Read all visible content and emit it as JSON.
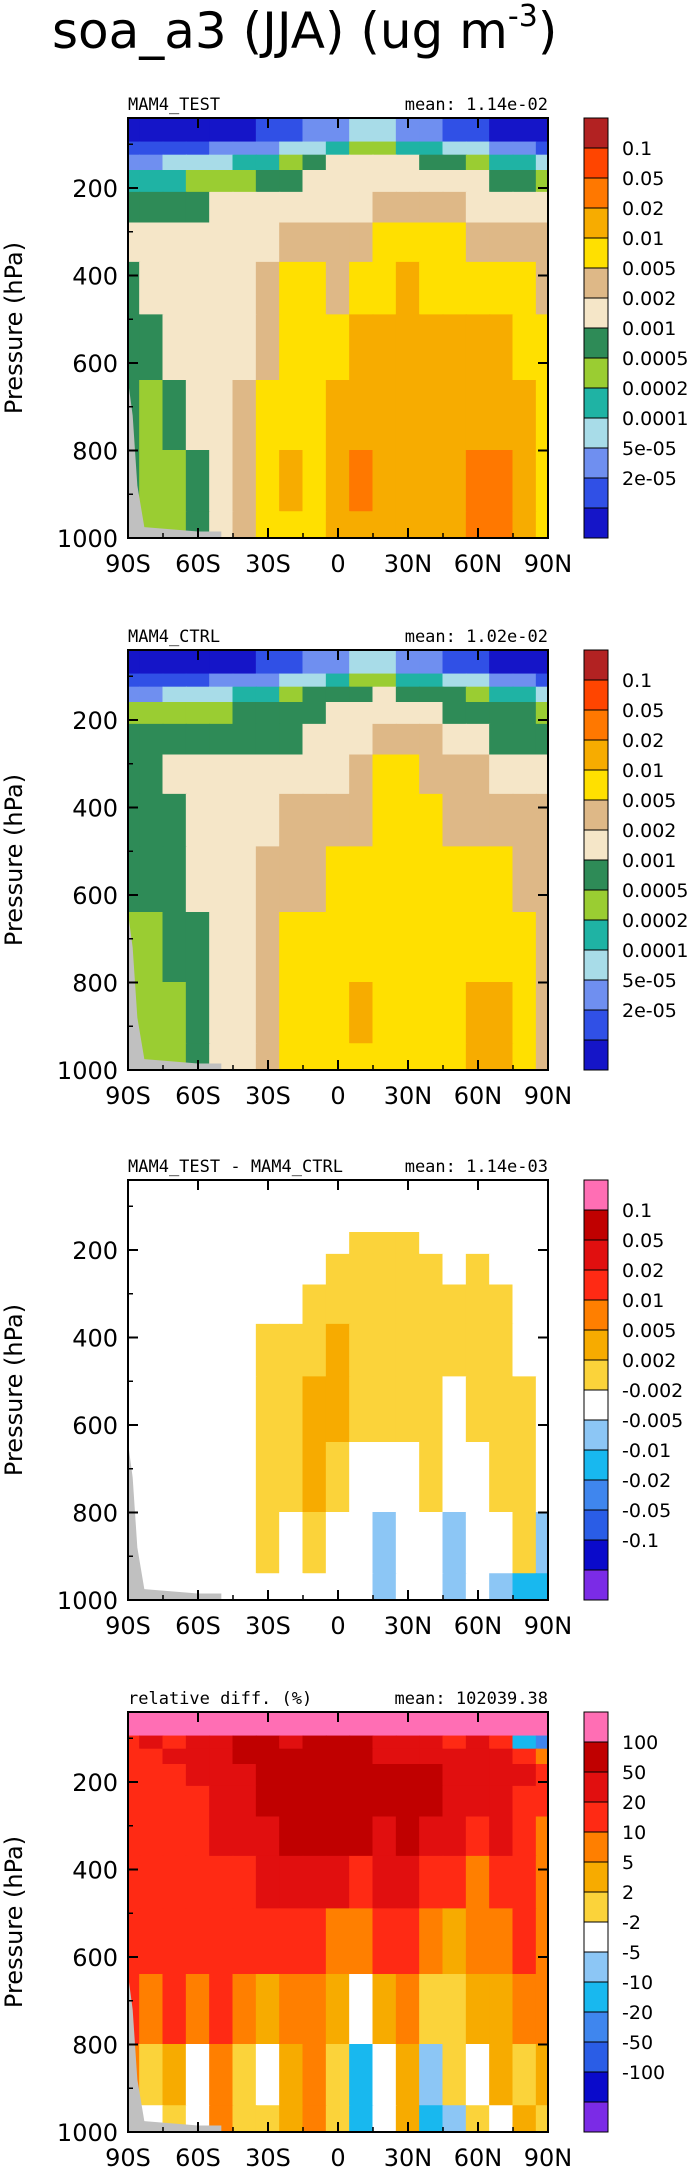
{
  "figure_title": "soa_a3 (JJA) (ug m",
  "figure_title_sup": "-3",
  "figure_title_close": ")",
  "colors": {
    "abs": [
      "#1515c8",
      "#3050e6",
      "#6f8ff0",
      "#a8dce8",
      "#1fb3a4",
      "#9acd32",
      "#2e8b57",
      "#f5e6c8",
      "#deb887",
      "#ffe000",
      "#f7ac00",
      "#ff7800",
      "#ff4500",
      "#b22222"
    ],
    "diff": [
      "#7b2be6",
      "#0a0acb",
      "#2a5de6",
      "#3f86ee",
      "#18b8ef",
      "#8cc6f5",
      "#ffffff",
      "#fbd33a",
      "#f7ab00",
      "#ff7f00",
      "#ff2a14",
      "#e10f0f",
      "#c00000",
      "#ff6eb4"
    ],
    "grey": "#c0c0c0"
  },
  "chart_data": [
    {
      "type": "contour",
      "title": "MAM4_TEST",
      "mean_text": "mean: 1.14e-02",
      "ylabel": "Pressure (hPa)",
      "xlabel": "",
      "x_ticks": [
        "90S",
        "60S",
        "30S",
        "0",
        "30N",
        "60N",
        "90N"
      ],
      "y_ticks": [
        "200",
        "400",
        "600",
        "800",
        "1000"
      ],
      "ylim": [
        1000,
        40
      ],
      "xlim": [
        -90,
        90
      ],
      "colorbar_labels": [
        "0.1",
        "0.05",
        "0.02",
        "0.01",
        "0.005",
        "0.002",
        "0.001",
        "0.0005",
        "0.0002",
        "0.0001",
        "5e-05",
        "2e-05"
      ],
      "palette": "abs",
      "levels_x": [
        -90,
        -80,
        -70,
        -60,
        -50,
        -40,
        -30,
        -20,
        -10,
        0,
        10,
        20,
        30,
        40,
        50,
        60,
        70,
        80,
        90
      ],
      "levels_p": [
        80,
        110,
        140,
        180,
        240,
        320,
        420,
        560,
        720,
        880,
        1000
      ],
      "grid": [
        [
          0,
          0,
          0,
          0,
          0,
          0,
          1,
          1,
          2,
          2,
          3,
          3,
          2,
          2,
          1,
          1,
          0,
          0,
          0
        ],
        [
          1,
          1,
          1,
          1,
          2,
          2,
          2,
          3,
          3,
          4,
          5,
          5,
          4,
          4,
          3,
          3,
          2,
          2,
          1
        ],
        [
          2,
          2,
          3,
          3,
          3,
          4,
          4,
          5,
          6,
          7,
          7,
          7,
          7,
          6,
          6,
          5,
          4,
          4,
          3
        ],
        [
          4,
          4,
          4,
          5,
          5,
          5,
          6,
          6,
          7,
          7,
          7,
          7,
          7,
          7,
          7,
          7,
          6,
          6,
          5
        ],
        [
          6,
          6,
          6,
          6,
          7,
          7,
          7,
          7,
          7,
          7,
          7,
          8,
          8,
          8,
          8,
          7,
          7,
          7,
          7
        ],
        [
          7,
          7,
          7,
          7,
          7,
          7,
          7,
          8,
          8,
          8,
          8,
          9,
          9,
          9,
          9,
          8,
          8,
          8,
          8
        ],
        [
          6,
          7,
          7,
          7,
          7,
          7,
          8,
          9,
          9,
          8,
          9,
          9,
          10,
          9,
          9,
          9,
          9,
          9,
          8
        ],
        [
          6,
          6,
          7,
          7,
          7,
          7,
          8,
          9,
          9,
          9,
          10,
          10,
          10,
          10,
          10,
          10,
          10,
          9,
          9
        ],
        [
          6,
          5,
          6,
          7,
          7,
          8,
          9,
          9,
          9,
          10,
          10,
          10,
          10,
          10,
          10,
          10,
          10,
          10,
          9
        ],
        [
          6,
          5,
          5,
          6,
          7,
          8,
          9,
          10,
          9,
          10,
          11,
          10,
          10,
          10,
          10,
          11,
          11,
          10,
          9
        ],
        [
          6,
          5,
          5,
          6,
          7,
          8,
          9,
          9,
          9,
          10,
          10,
          10,
          10,
          10,
          10,
          11,
          11,
          10,
          9
        ]
      ]
    },
    {
      "type": "contour",
      "title": "MAM4_CTRL",
      "mean_text": "mean: 1.02e-02",
      "ylabel": "Pressure (hPa)",
      "xlabel": "",
      "x_ticks": [
        "90S",
        "60S",
        "30S",
        "0",
        "30N",
        "60N",
        "90N"
      ],
      "y_ticks": [
        "200",
        "400",
        "600",
        "800",
        "1000"
      ],
      "ylim": [
        1000,
        40
      ],
      "xlim": [
        -90,
        90
      ],
      "colorbar_labels": [
        "0.1",
        "0.05",
        "0.02",
        "0.01",
        "0.005",
        "0.002",
        "0.001",
        "0.0005",
        "0.0002",
        "0.0001",
        "5e-05",
        "2e-05"
      ],
      "palette": "abs",
      "levels_x": [
        -90,
        -80,
        -70,
        -60,
        -50,
        -40,
        -30,
        -20,
        -10,
        0,
        10,
        20,
        30,
        40,
        50,
        60,
        70,
        80,
        90
      ],
      "levels_p": [
        80,
        110,
        140,
        180,
        240,
        320,
        420,
        560,
        720,
        880,
        1000
      ],
      "grid": [
        [
          0,
          0,
          0,
          0,
          0,
          0,
          1,
          1,
          2,
          2,
          3,
          3,
          2,
          2,
          1,
          1,
          0,
          0,
          0
        ],
        [
          1,
          1,
          1,
          1,
          2,
          2,
          2,
          3,
          3,
          4,
          5,
          5,
          4,
          4,
          3,
          3,
          2,
          2,
          1
        ],
        [
          2,
          2,
          3,
          3,
          3,
          4,
          4,
          5,
          6,
          6,
          6,
          7,
          6,
          6,
          6,
          5,
          4,
          4,
          3
        ],
        [
          5,
          5,
          5,
          5,
          5,
          6,
          6,
          6,
          6,
          7,
          7,
          7,
          7,
          7,
          6,
          6,
          6,
          6,
          5
        ],
        [
          6,
          6,
          6,
          6,
          6,
          6,
          6,
          6,
          7,
          7,
          7,
          8,
          8,
          8,
          7,
          7,
          6,
          6,
          6
        ],
        [
          6,
          6,
          7,
          7,
          7,
          7,
          7,
          7,
          7,
          7,
          8,
          9,
          9,
          8,
          8,
          8,
          7,
          7,
          7
        ],
        [
          6,
          6,
          6,
          7,
          7,
          7,
          7,
          8,
          8,
          8,
          8,
          9,
          9,
          9,
          8,
          8,
          8,
          8,
          8
        ],
        [
          6,
          6,
          6,
          7,
          7,
          7,
          8,
          8,
          8,
          9,
          9,
          9,
          9,
          9,
          9,
          9,
          9,
          8,
          8
        ],
        [
          5,
          5,
          6,
          6,
          7,
          7,
          8,
          9,
          9,
          9,
          9,
          9,
          9,
          9,
          9,
          9,
          9,
          9,
          8
        ],
        [
          5,
          5,
          5,
          6,
          7,
          7,
          8,
          9,
          9,
          9,
          10,
          9,
          9,
          9,
          9,
          10,
          10,
          9,
          8
        ],
        [
          5,
          5,
          5,
          6,
          7,
          7,
          8,
          9,
          9,
          9,
          9,
          9,
          9,
          9,
          9,
          10,
          10,
          9,
          8
        ]
      ]
    },
    {
      "type": "contour",
      "title": "MAM4_TEST - MAM4_CTRL",
      "mean_text": "mean: 1.14e-03",
      "ylabel": "Pressure (hPa)",
      "xlabel": "",
      "x_ticks": [
        "90S",
        "60S",
        "30S",
        "0",
        "30N",
        "60N",
        "90N"
      ],
      "y_ticks": [
        "200",
        "400",
        "600",
        "800",
        "1000"
      ],
      "ylim": [
        1000,
        40
      ],
      "xlim": [
        -90,
        90
      ],
      "colorbar_labels": [
        "0.1",
        "0.05",
        "0.02",
        "0.01",
        "0.005",
        "0.002",
        "-0.002",
        "-0.005",
        "-0.01",
        "-0.02",
        "-0.05",
        "-0.1"
      ],
      "palette": "diff",
      "levels_x": [
        -90,
        -80,
        -70,
        -60,
        -50,
        -40,
        -30,
        -20,
        -10,
        0,
        10,
        20,
        30,
        40,
        50,
        60,
        70,
        80,
        90
      ],
      "levels_p": [
        80,
        110,
        140,
        180,
        240,
        320,
        420,
        560,
        720,
        880,
        1000
      ],
      "grid": [
        [
          6,
          6,
          6,
          6,
          6,
          6,
          6,
          6,
          6,
          6,
          6,
          6,
          6,
          6,
          6,
          6,
          6,
          6,
          6
        ],
        [
          6,
          6,
          6,
          6,
          6,
          6,
          6,
          6,
          6,
          6,
          6,
          6,
          6,
          6,
          6,
          6,
          6,
          6,
          6
        ],
        [
          6,
          6,
          6,
          6,
          6,
          6,
          6,
          6,
          6,
          6,
          6,
          6,
          6,
          6,
          6,
          6,
          6,
          6,
          6
        ],
        [
          6,
          6,
          6,
          6,
          6,
          6,
          6,
          6,
          6,
          6,
          7,
          7,
          7,
          6,
          6,
          6,
          6,
          6,
          6
        ],
        [
          6,
          6,
          6,
          6,
          6,
          6,
          6,
          6,
          6,
          7,
          7,
          7,
          7,
          7,
          6,
          7,
          6,
          6,
          6
        ],
        [
          6,
          6,
          6,
          6,
          6,
          6,
          6,
          6,
          7,
          7,
          7,
          7,
          7,
          7,
          7,
          7,
          7,
          6,
          6
        ],
        [
          6,
          6,
          6,
          6,
          6,
          6,
          7,
          7,
          7,
          8,
          7,
          7,
          7,
          7,
          7,
          7,
          7,
          6,
          6
        ],
        [
          6,
          6,
          6,
          6,
          6,
          6,
          7,
          7,
          8,
          8,
          7,
          7,
          7,
          7,
          6,
          7,
          7,
          7,
          6
        ],
        [
          6,
          6,
          6,
          6,
          6,
          6,
          7,
          7,
          8,
          7,
          6,
          6,
          6,
          7,
          6,
          6,
          7,
          7,
          6
        ],
        [
          6,
          6,
          6,
          6,
          6,
          6,
          7,
          6,
          7,
          6,
          6,
          5,
          6,
          6,
          5,
          6,
          6,
          7,
          5
        ],
        [
          6,
          6,
          6,
          6,
          6,
          6,
          6,
          6,
          6,
          6,
          6,
          5,
          6,
          6,
          5,
          6,
          5,
          4,
          4
        ]
      ]
    },
    {
      "type": "contour",
      "title": "relative diff. (%)",
      "mean_text": "mean: 102039.38",
      "ylabel": "Pressure (hPa)",
      "xlabel": "",
      "x_ticks": [
        "90S",
        "60S",
        "30S",
        "0",
        "30N",
        "60N",
        "90N"
      ],
      "y_ticks": [
        "200",
        "400",
        "600",
        "800",
        "1000"
      ],
      "ylim": [
        1000,
        40
      ],
      "xlim": [
        -90,
        90
      ],
      "colorbar_labels": [
        "100",
        "50",
        "20",
        "10",
        "5",
        "2",
        "-2",
        "-5",
        "-10",
        "-20",
        "-50",
        "-100"
      ],
      "palette": "diff",
      "levels_x": [
        -90,
        -80,
        -70,
        -60,
        -50,
        -40,
        -30,
        -20,
        -10,
        0,
        10,
        20,
        30,
        40,
        50,
        60,
        70,
        80,
        90
      ],
      "levels_p": [
        80,
        110,
        140,
        180,
        240,
        320,
        420,
        560,
        720,
        880,
        1000
      ],
      "grid": [
        [
          13,
          13,
          13,
          13,
          13,
          13,
          13,
          13,
          13,
          13,
          13,
          13,
          13,
          13,
          13,
          13,
          13,
          13,
          13
        ],
        [
          10,
          11,
          10,
          11,
          11,
          12,
          12,
          11,
          12,
          12,
          12,
          11,
          11,
          11,
          10,
          11,
          10,
          4,
          3
        ],
        [
          10,
          10,
          11,
          11,
          11,
          12,
          12,
          12,
          12,
          12,
          12,
          11,
          11,
          11,
          11,
          11,
          11,
          10,
          9
        ],
        [
          10,
          10,
          10,
          11,
          11,
          11,
          12,
          12,
          12,
          12,
          12,
          12,
          12,
          12,
          11,
          11,
          11,
          11,
          10
        ],
        [
          10,
          10,
          10,
          10,
          11,
          11,
          12,
          12,
          12,
          12,
          12,
          12,
          12,
          12,
          11,
          11,
          11,
          10,
          10
        ],
        [
          10,
          10,
          10,
          10,
          11,
          11,
          11,
          12,
          12,
          12,
          12,
          11,
          12,
          11,
          11,
          10,
          11,
          10,
          9
        ],
        [
          10,
          10,
          10,
          10,
          10,
          10,
          11,
          11,
          11,
          11,
          10,
          11,
          11,
          10,
          10,
          9,
          10,
          10,
          9
        ],
        [
          10,
          10,
          10,
          10,
          10,
          10,
          10,
          10,
          10,
          9,
          9,
          10,
          10,
          9,
          8,
          9,
          9,
          10,
          9
        ],
        [
          10,
          9,
          10,
          9,
          10,
          9,
          8,
          9,
          9,
          8,
          6,
          8,
          9,
          7,
          7,
          8,
          8,
          9,
          9
        ],
        [
          9,
          7,
          8,
          6,
          9,
          7,
          6,
          8,
          9,
          7,
          4,
          6,
          8,
          5,
          7,
          6,
          8,
          7,
          8
        ],
        [
          9,
          6,
          7,
          6,
          9,
          7,
          7,
          8,
          9,
          7,
          4,
          6,
          8,
          4,
          5,
          7,
          6,
          8,
          7
        ]
      ]
    }
  ]
}
